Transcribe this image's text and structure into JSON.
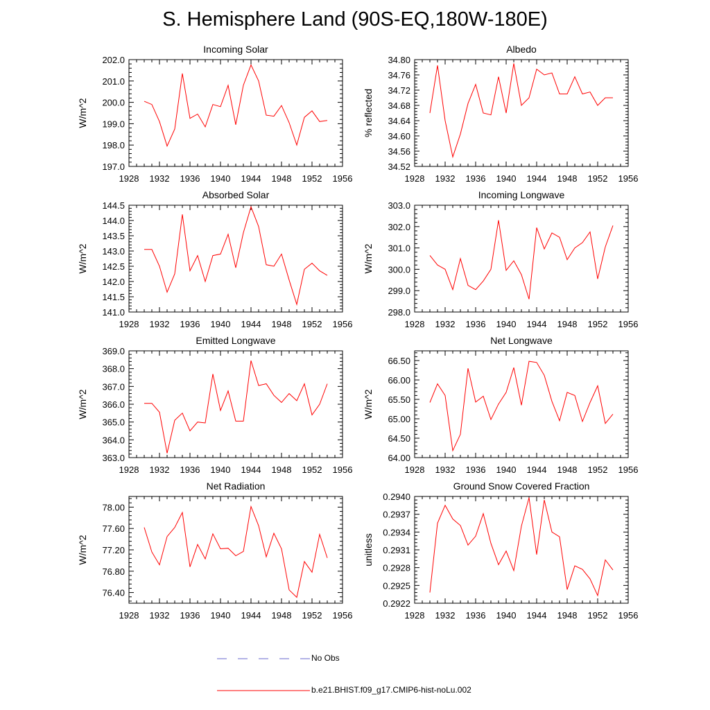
{
  "title": "S. Hemisphere Land (90S-EQ,180W-180E)",
  "colors": {
    "model": "#ff0000",
    "obs": "#6666cc",
    "axis": "#000000"
  },
  "legend": [
    {
      "label": "No Obs",
      "style": "dashed",
      "color": "#6666cc"
    },
    {
      "label": "b.e21.BHIST.f09_g17.CMIP6-hist-noLu.002",
      "style": "solid",
      "color": "#ff0000"
    }
  ],
  "chart_data": [
    {
      "type": "line",
      "title": "Incoming Solar",
      "xlabel": "",
      "ylabel": "W/m^2",
      "xlim": [
        1928,
        1956
      ],
      "ylim": [
        197.0,
        202.0
      ],
      "decimals": 1,
      "xticks": [
        1928,
        1932,
        1936,
        1940,
        1944,
        1948,
        1952,
        1956
      ],
      "yticks": [
        197.0,
        198.0,
        199.0,
        200.0,
        201.0,
        202.0
      ],
      "x": [
        1930,
        1931,
        1932,
        1933,
        1934,
        1935,
        1936,
        1937,
        1938,
        1939,
        1940,
        1941,
        1942,
        1943,
        1944,
        1945,
        1946,
        1947,
        1948,
        1949,
        1950,
        1951,
        1952,
        1953,
        1954
      ],
      "series": [
        {
          "values": [
            200.05,
            199.9,
            199.1,
            197.95,
            198.75,
            201.35,
            199.25,
            199.45,
            198.85,
            199.9,
            199.8,
            200.8,
            198.95,
            200.8,
            201.75,
            201.0,
            199.4,
            199.35,
            199.85,
            199.05,
            198.0,
            199.3,
            199.6,
            199.1,
            199.15
          ]
        }
      ]
    },
    {
      "type": "line",
      "title": "Albedo",
      "xlabel": "",
      "ylabel": "% reflected",
      "xlim": [
        1928,
        1956
      ],
      "ylim": [
        34.52,
        34.8
      ],
      "decimals": 2,
      "xticks": [
        1928,
        1932,
        1936,
        1940,
        1944,
        1948,
        1952,
        1956
      ],
      "yticks": [
        34.52,
        34.56,
        34.6,
        34.64,
        34.68,
        34.72,
        34.76,
        34.8
      ],
      "x": [
        1930,
        1931,
        1932,
        1933,
        1934,
        1935,
        1936,
        1937,
        1938,
        1939,
        1940,
        1941,
        1942,
        1943,
        1944,
        1945,
        1946,
        1947,
        1948,
        1949,
        1950,
        1951,
        1952,
        1953,
        1954
      ],
      "series": [
        {
          "values": [
            34.66,
            34.785,
            34.64,
            34.545,
            34.605,
            34.685,
            34.735,
            34.66,
            34.655,
            34.755,
            34.66,
            34.79,
            34.68,
            34.7,
            34.775,
            34.76,
            34.765,
            34.71,
            34.71,
            34.755,
            34.71,
            34.715,
            34.68,
            34.7,
            34.7
          ]
        }
      ]
    },
    {
      "type": "line",
      "title": "Absorbed Solar",
      "xlabel": "",
      "ylabel": "W/m^2",
      "xlim": [
        1928,
        1956
      ],
      "ylim": [
        141.0,
        144.5
      ],
      "decimals": 1,
      "xticks": [
        1928,
        1932,
        1936,
        1940,
        1944,
        1948,
        1952,
        1956
      ],
      "yticks": [
        141.0,
        141.5,
        142.0,
        142.5,
        143.0,
        143.5,
        144.0,
        144.5
      ],
      "x": [
        1930,
        1931,
        1932,
        1933,
        1934,
        1935,
        1936,
        1937,
        1938,
        1939,
        1940,
        1941,
        1942,
        1943,
        1944,
        1945,
        1946,
        1947,
        1948,
        1949,
        1950,
        1951,
        1952,
        1953,
        1954
      ],
      "series": [
        {
          "values": [
            143.05,
            143.05,
            142.5,
            141.65,
            142.25,
            144.2,
            142.35,
            142.85,
            142.0,
            142.85,
            142.9,
            143.55,
            142.45,
            143.6,
            144.45,
            143.8,
            142.55,
            142.5,
            142.9,
            142.05,
            141.25,
            142.4,
            142.6,
            142.35,
            142.2
          ]
        }
      ]
    },
    {
      "type": "line",
      "title": "Incoming Longwave",
      "xlabel": "",
      "ylabel": "W/m^2",
      "xlim": [
        1928,
        1956
      ],
      "ylim": [
        298.0,
        303.0
      ],
      "decimals": 1,
      "xticks": [
        1928,
        1932,
        1936,
        1940,
        1944,
        1948,
        1952,
        1956
      ],
      "yticks": [
        298.0,
        299.0,
        300.0,
        301.0,
        302.0,
        303.0
      ],
      "x": [
        1930,
        1931,
        1932,
        1933,
        1934,
        1935,
        1936,
        1937,
        1938,
        1939,
        1940,
        1941,
        1942,
        1943,
        1944,
        1945,
        1946,
        1947,
        1948,
        1949,
        1950,
        1951,
        1952,
        1953,
        1954
      ],
      "series": [
        {
          "values": [
            300.65,
            300.2,
            300.0,
            299.05,
            300.5,
            299.25,
            299.05,
            299.45,
            300.0,
            302.3,
            299.95,
            300.4,
            299.75,
            298.6,
            301.95,
            300.95,
            301.7,
            301.5,
            300.45,
            301.0,
            301.25,
            301.75,
            299.55,
            301.05,
            302.05
          ]
        }
      ]
    },
    {
      "type": "line",
      "title": "Emitted Longwave",
      "xlabel": "",
      "ylabel": "W/m^2",
      "xlim": [
        1928,
        1956
      ],
      "ylim": [
        363.0,
        369.0
      ],
      "decimals": 1,
      "xticks": [
        1928,
        1932,
        1936,
        1940,
        1944,
        1948,
        1952,
        1956
      ],
      "yticks": [
        363.0,
        364.0,
        365.0,
        366.0,
        367.0,
        368.0,
        369.0
      ],
      "x": [
        1930,
        1931,
        1932,
        1933,
        1934,
        1935,
        1936,
        1937,
        1938,
        1939,
        1940,
        1941,
        1942,
        1943,
        1944,
        1945,
        1946,
        1947,
        1948,
        1949,
        1950,
        1951,
        1952,
        1953,
        1954
      ],
      "series": [
        {
          "values": [
            366.05,
            366.05,
            365.55,
            363.25,
            365.1,
            365.5,
            364.5,
            365.0,
            364.95,
            367.7,
            365.65,
            366.75,
            365.05,
            365.05,
            368.45,
            367.05,
            367.15,
            366.5,
            366.1,
            366.6,
            366.2,
            367.15,
            365.4,
            366.0,
            367.15
          ]
        }
      ]
    },
    {
      "type": "line",
      "title": "Net Longwave",
      "xlabel": "",
      "ylabel": "W/m^2",
      "xlim": [
        1928,
        1956
      ],
      "ylim": [
        64.0,
        66.75
      ],
      "decimals": 2,
      "xticks": [
        1928,
        1932,
        1936,
        1940,
        1944,
        1948,
        1952,
        1956
      ],
      "yticks": [
        64.0,
        64.5,
        65.0,
        65.5,
        66.0,
        66.5
      ],
      "x": [
        1930,
        1931,
        1932,
        1933,
        1934,
        1935,
        1936,
        1937,
        1938,
        1939,
        1940,
        1941,
        1942,
        1943,
        1944,
        1945,
        1946,
        1947,
        1948,
        1949,
        1950,
        1951,
        1952,
        1953,
        1954
      ],
      "series": [
        {
          "values": [
            65.42,
            65.9,
            65.6,
            64.18,
            64.6,
            66.3,
            65.43,
            65.58,
            64.98,
            65.38,
            65.68,
            66.32,
            65.35,
            66.48,
            66.45,
            66.12,
            65.45,
            64.95,
            65.68,
            65.6,
            64.93,
            65.42,
            65.85,
            64.88,
            65.12
          ]
        }
      ]
    },
    {
      "type": "line",
      "title": "Net Radiation",
      "xlabel": "",
      "ylabel": "W/m^2",
      "xlim": [
        1928,
        1956
      ],
      "ylim": [
        76.2,
        78.2
      ],
      "decimals": 2,
      "xticks": [
        1928,
        1932,
        1936,
        1940,
        1944,
        1948,
        1952,
        1956
      ],
      "yticks": [
        76.4,
        76.8,
        77.2,
        77.6,
        78.0
      ],
      "x": [
        1930,
        1931,
        1932,
        1933,
        1934,
        1935,
        1936,
        1937,
        1938,
        1939,
        1940,
        1941,
        1942,
        1943,
        1944,
        1945,
        1946,
        1947,
        1948,
        1949,
        1950,
        1951,
        1952,
        1953,
        1954
      ],
      "series": [
        {
          "values": [
            77.62,
            77.16,
            76.92,
            77.45,
            77.62,
            77.9,
            76.88,
            77.3,
            77.03,
            77.5,
            77.22,
            77.23,
            77.09,
            77.17,
            78.01,
            77.65,
            77.07,
            77.51,
            77.22,
            76.45,
            76.31,
            76.98,
            76.78,
            77.49,
            77.05
          ]
        }
      ]
    },
    {
      "type": "line",
      "title": "Ground Snow Covered Fraction",
      "xlabel": "",
      "ylabel": "unitless",
      "xlim": [
        1928,
        1956
      ],
      "ylim": [
        0.2922,
        0.294
      ],
      "decimals": 4,
      "xticks": [
        1928,
        1932,
        1936,
        1940,
        1944,
        1948,
        1952,
        1956
      ],
      "yticks": [
        0.2922,
        0.2925,
        0.2928,
        0.2931,
        0.2934,
        0.2937,
        0.294
      ],
      "x": [
        1930,
        1931,
        1932,
        1933,
        1934,
        1935,
        1936,
        1937,
        1938,
        1939,
        1940,
        1941,
        1942,
        1943,
        1944,
        1945,
        1946,
        1947,
        1948,
        1949,
        1950,
        1951,
        1952,
        1953,
        1954
      ],
      "series": [
        {
          "values": [
            0.29238,
            0.29355,
            0.29385,
            0.29362,
            0.29351,
            0.29318,
            0.29333,
            0.29371,
            0.29321,
            0.29285,
            0.29308,
            0.29275,
            0.2935,
            0.29398,
            0.29302,
            0.29394,
            0.2934,
            0.29332,
            0.29243,
            0.29283,
            0.29277,
            0.29261,
            0.29233,
            0.29293,
            0.29276
          ]
        }
      ]
    }
  ]
}
